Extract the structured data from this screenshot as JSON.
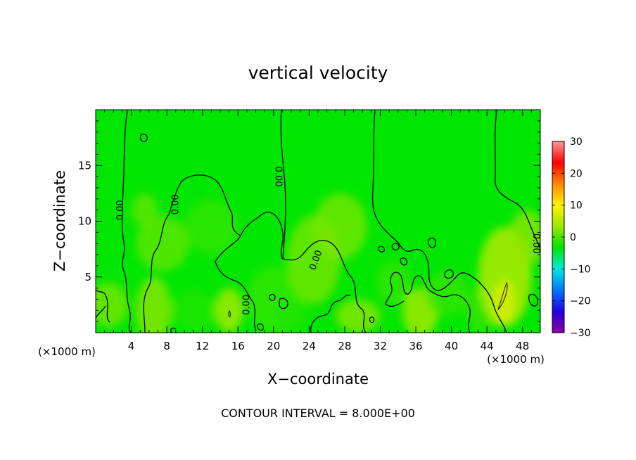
{
  "chart_data": {
    "type": "heatmap",
    "title": "vertical velocity",
    "xlabel": "X−coordinate",
    "ylabel": "Z−coordinate",
    "x_unit_left": "(×1000 m)",
    "x_unit_right": "(×1000 m)",
    "footer": "CONTOUR INTERVAL = 8.000E+00",
    "xlim": [
      0,
      50
    ],
    "ylim": [
      0,
      20
    ],
    "x_ticks": [
      {
        "value": 4,
        "label": "4"
      },
      {
        "value": 8,
        "label": "8"
      },
      {
        "value": 12,
        "label": "12"
      },
      {
        "value": 16,
        "label": "16"
      },
      {
        "value": 20,
        "label": "20"
      },
      {
        "value": 24,
        "label": "24"
      },
      {
        "value": 28,
        "label": "28"
      },
      {
        "value": 32,
        "label": "32"
      },
      {
        "value": 36,
        "label": "36"
      },
      {
        "value": 40,
        "label": "40"
      },
      {
        "value": 44,
        "label": "44"
      },
      {
        "value": 48,
        "label": "48"
      }
    ],
    "y_ticks": [
      {
        "value": 5,
        "label": "5"
      },
      {
        "value": 10,
        "label": "10"
      },
      {
        "value": 15,
        "label": "15"
      }
    ],
    "colorbar": {
      "range": [
        -30,
        30
      ],
      "ticks": [
        {
          "value": 30,
          "label": "30"
        },
        {
          "value": 20,
          "label": "20"
        },
        {
          "value": 10,
          "label": "10"
        },
        {
          "value": 0,
          "label": "0"
        },
        {
          "value": -10,
          "label": "−10"
        },
        {
          "value": -20,
          "label": "−20"
        },
        {
          "value": -30,
          "label": "−30"
        }
      ],
      "colors": [
        "#8a00a8",
        "#2200dd",
        "#0077ff",
        "#00e8e0",
        "#00e600",
        "#9ee600",
        "#fff200",
        "#ff8800",
        "#ff0000",
        "#ff9999"
      ]
    },
    "field_color": "#00e600",
    "blobs": [
      {
        "x": 1.5,
        "z": 2.5,
        "rx": 2.2,
        "rz": 2.0,
        "w": 2
      },
      {
        "x": 6.5,
        "z": 2.0,
        "rx": 2.0,
        "rz": 3.0,
        "w": 3
      },
      {
        "x": 7.5,
        "z": 8.0,
        "rx": 3.0,
        "rz": 2.5,
        "w": 1
      },
      {
        "x": 11.0,
        "z": 2.0,
        "rx": 2.5,
        "rz": 1.8,
        "w": -2
      },
      {
        "x": 13.0,
        "z": 9.5,
        "rx": 3.0,
        "rz": 2.5,
        "w": -1
      },
      {
        "x": 15.0,
        "z": 2.0,
        "rx": 1.6,
        "rz": 2.0,
        "w": 5
      },
      {
        "x": 20.0,
        "z": 3.0,
        "rx": 3.0,
        "rz": 3.0,
        "w": -1
      },
      {
        "x": 24.5,
        "z": 6.5,
        "rx": 3.0,
        "rz": 4.0,
        "w": 2
      },
      {
        "x": 27.5,
        "z": 9.5,
        "rx": 3.0,
        "rz": 3.0,
        "w": 2
      },
      {
        "x": 22.0,
        "z": 1.5,
        "rx": 2.0,
        "rz": 1.5,
        "w": -2
      },
      {
        "x": 29.5,
        "z": 1.5,
        "rx": 2.5,
        "rz": 1.5,
        "w": 3
      },
      {
        "x": 33.5,
        "z": 4.5,
        "rx": 2.0,
        "rz": 2.0,
        "w": -1
      },
      {
        "x": 36.5,
        "z": 1.8,
        "rx": 2.0,
        "rz": 2.2,
        "w": 5
      },
      {
        "x": 39.5,
        "z": 3.5,
        "rx": 2.5,
        "rz": 2.0,
        "w": -1
      },
      {
        "x": 43.5,
        "z": 2.0,
        "rx": 2.0,
        "rz": 2.0,
        "w": -1
      },
      {
        "x": 46.0,
        "z": 5.0,
        "rx": 3.0,
        "rz": 4.5,
        "w": 6
      },
      {
        "x": 46.0,
        "z": 2.8,
        "rx": 1.2,
        "rz": 2.0,
        "w": 8
      },
      {
        "x": 48.5,
        "z": 8.5,
        "rx": 2.0,
        "rz": 2.5,
        "w": 3
      },
      {
        "x": 5.5,
        "z": 11.0,
        "rx": 1.5,
        "rz": 1.5,
        "w": 1
      }
    ],
    "contour_labels": [
      {
        "text": "0.00",
        "x": 2.8,
        "z": 11.0,
        "angle": -90
      },
      {
        "text": "0.00",
        "x": 9.0,
        "z": 11.5,
        "angle": -90
      },
      {
        "text": "0.00",
        "x": 20.5,
        "z": 14.0,
        "angle": 90
      },
      {
        "text": "0.00",
        "x": 24.8,
        "z": 6.5,
        "angle": -70
      },
      {
        "text": "0.00",
        "x": 17.0,
        "z": 2.5,
        "angle": -90
      },
      {
        "text": "0.00",
        "x": 49.5,
        "z": 8.0,
        "angle": 90
      }
    ]
  }
}
